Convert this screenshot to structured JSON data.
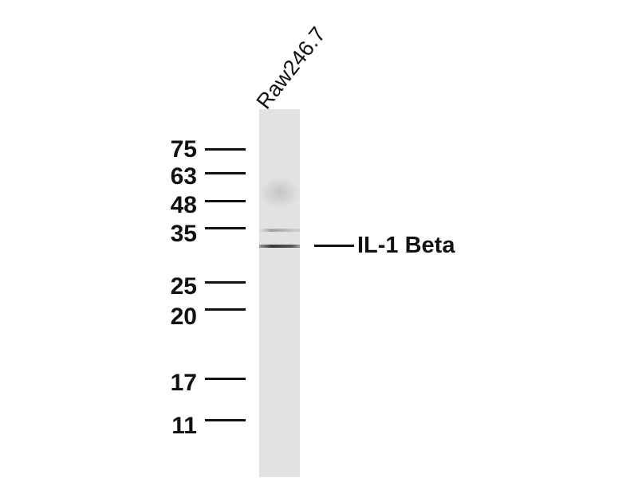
{
  "lane_label": "Raw246.7",
  "target_label": "IL-1 Beta",
  "markers": [
    "75",
    "63",
    "48",
    "35",
    "25",
    "20",
    "17",
    "11"
  ],
  "colors": {
    "lane": "#e2e2e2",
    "ink": "#111111"
  }
}
